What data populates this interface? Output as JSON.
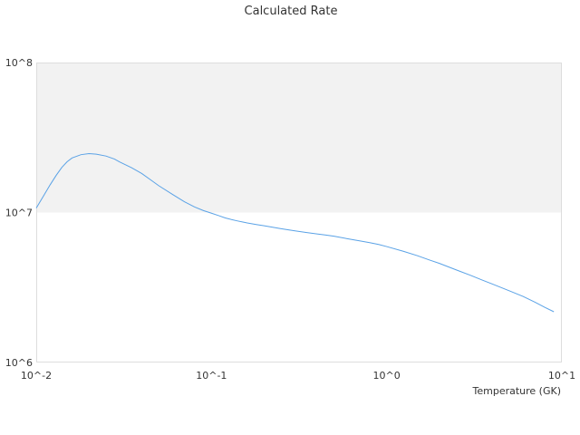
{
  "chart_data": {
    "type": "line",
    "title": "Calculated Rate",
    "xlabel": "Temperature (GK)",
    "ylabel": "",
    "x_scale": "log",
    "y_scale": "log",
    "xlim": [
      0.01,
      10
    ],
    "ylim": [
      1000000,
      100000000
    ],
    "x_tick_labels": [
      "10^-2",
      "10^-1",
      "10^0",
      "10^1"
    ],
    "y_tick_labels": [
      "10^6",
      "10^7",
      "10^8"
    ],
    "grid": false,
    "legend": "none",
    "shaded_band": {
      "from": 10000000,
      "to": 100000000,
      "color": "#f2f2f2"
    },
    "colors": {
      "line": "#5aa2e6",
      "frame": "#dddddd",
      "band": "#f2f2f2"
    },
    "series": [
      {
        "x": [
          0.01,
          0.011,
          0.012,
          0.013,
          0.014,
          0.015,
          0.016,
          0.018,
          0.02,
          0.022,
          0.025,
          0.028,
          0.03,
          0.035,
          0.04,
          0.045,
          0.05,
          0.06,
          0.07,
          0.08,
          0.09,
          0.1,
          0.11,
          0.12,
          0.13,
          0.14,
          0.15,
          0.16,
          0.18,
          0.2,
          0.25,
          0.3,
          0.35,
          0.4,
          0.45,
          0.5,
          0.6,
          0.7,
          0.8,
          0.9,
          1.0,
          1.25,
          1.5,
          1.75,
          2.0,
          2.5,
          3.0,
          3.5,
          4.0,
          5.0,
          6.0,
          7.0,
          8.0,
          9.0
        ],
        "y": [
          10700000,
          12900000,
          15300000,
          17700000,
          20000000,
          21800000,
          23100000,
          24300000,
          24700000,
          24500000,
          23800000,
          22700000,
          21700000,
          19900000,
          18200000,
          16500000,
          15100000,
          13200000,
          11800000,
          10900000,
          10300000,
          9900000,
          9530000,
          9200000,
          8980000,
          8800000,
          8650000,
          8520000,
          8320000,
          8160000,
          7800000,
          7540000,
          7350000,
          7200000,
          7080000,
          6950000,
          6680000,
          6470000,
          6300000,
          6120000,
          5930000,
          5510000,
          5150000,
          4830000,
          4580000,
          4140000,
          3820000,
          3550000,
          3340000,
          3010000,
          2760000,
          2530000,
          2330000,
          2180000
        ]
      }
    ]
  }
}
